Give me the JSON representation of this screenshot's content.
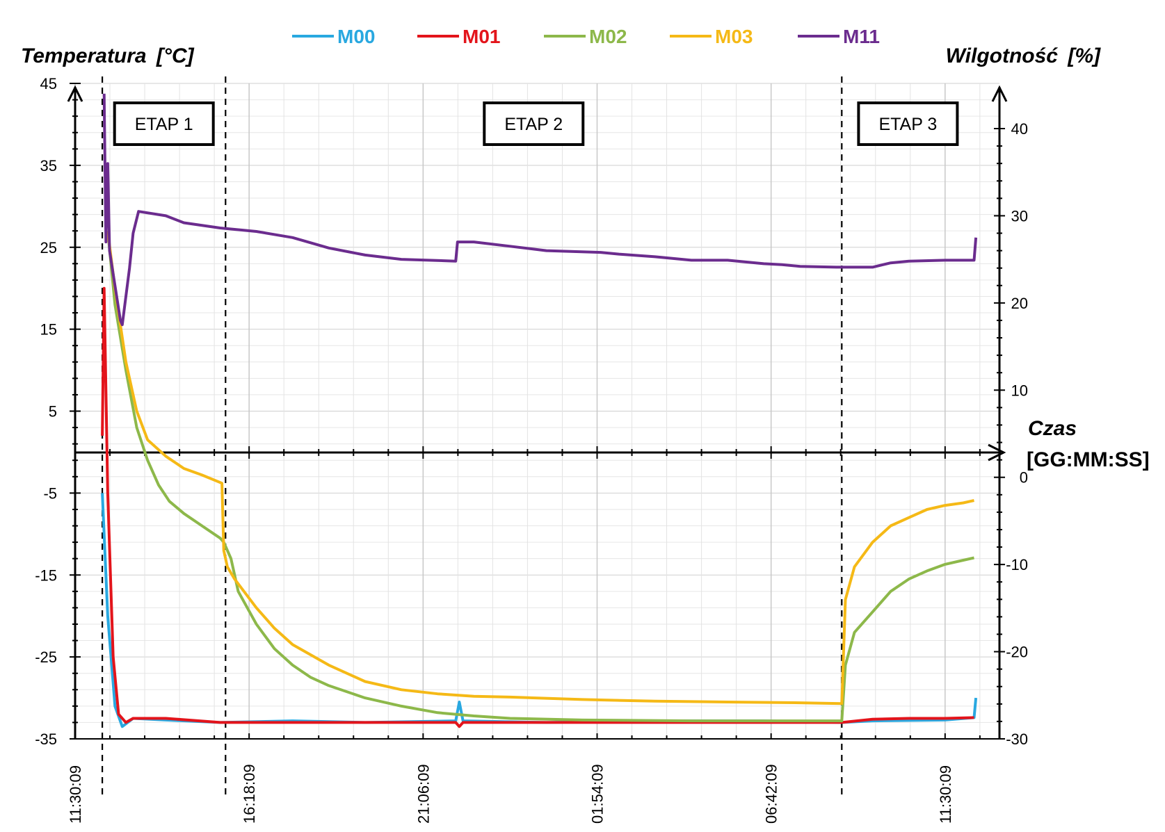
{
  "chart_data": {
    "type": "line",
    "y_axis_left": {
      "title": "Temperatura",
      "unit": "[°C]",
      "range": [
        -35,
        45
      ],
      "ticks": [
        45,
        35,
        25,
        15,
        5,
        -5,
        -15,
        -25,
        -35
      ]
    },
    "y_axis_right": {
      "title": "Wilgotność",
      "unit": "[%]",
      "range": [
        -30,
        40
      ],
      "ticks": [
        40,
        30,
        20,
        10,
        0,
        -10,
        -20,
        -30
      ]
    },
    "x_axis": {
      "title": "Czas",
      "unit": "[GG:MM:SS]",
      "unit_hours": "hours since 11:30:09",
      "range": [
        0,
        25.5
      ],
      "tick_labels": [
        {
          "label": "11:30:09",
          "value": 0
        },
        {
          "label": "16:18:09",
          "value": 4.8
        },
        {
          "label": "21:06:09",
          "value": 9.6
        },
        {
          "label": "01:54:09",
          "value": 14.4
        },
        {
          "label": "06:42:09",
          "value": 19.2
        },
        {
          "label": "11:30:09",
          "value": 24.0
        }
      ]
    },
    "grid": true,
    "legend_position": "top",
    "stages": [
      {
        "label": "ETAP 1",
        "start": 0.75,
        "end": 4.15
      },
      {
        "label": "ETAP 2",
        "start": 4.15,
        "end": 21.15
      },
      {
        "label": "ETAP 3",
        "start": 21.15,
        "end": 24.8
      }
    ],
    "series": [
      {
        "name": "M00",
        "color": "#29a8e0",
        "axis": "left",
        "points": [
          [
            0.75,
            -5
          ],
          [
            0.9,
            -20
          ],
          [
            1.1,
            -31
          ],
          [
            1.3,
            -33.5
          ],
          [
            1.6,
            -32.5
          ],
          [
            2.5,
            -32.7
          ],
          [
            4,
            -33
          ],
          [
            6,
            -32.8
          ],
          [
            8,
            -33
          ],
          [
            10.5,
            -32.8
          ],
          [
            10.6,
            -30.5
          ],
          [
            10.7,
            -32.8
          ],
          [
            13,
            -33
          ],
          [
            16,
            -32.8
          ],
          [
            19,
            -32.8
          ],
          [
            21.15,
            -33
          ],
          [
            22,
            -32.8
          ],
          [
            24,
            -32.7
          ],
          [
            24.8,
            -32.4
          ],
          [
            24.85,
            -30
          ]
        ]
      },
      {
        "name": "M01",
        "color": "#e3141b",
        "axis": "left",
        "points": [
          [
            0.75,
            2
          ],
          [
            0.8,
            20
          ],
          [
            0.9,
            -5
          ],
          [
            1.05,
            -25
          ],
          [
            1.2,
            -32
          ],
          [
            1.4,
            -33
          ],
          [
            1.6,
            -32.5
          ],
          [
            2.5,
            -32.5
          ],
          [
            4,
            -33
          ],
          [
            6,
            -33
          ],
          [
            8,
            -33
          ],
          [
            10.5,
            -33
          ],
          [
            10.6,
            -33.5
          ],
          [
            10.7,
            -33
          ],
          [
            13,
            -33
          ],
          [
            16,
            -33
          ],
          [
            19,
            -33
          ],
          [
            21.15,
            -33
          ],
          [
            22,
            -32.6
          ],
          [
            23,
            -32.5
          ],
          [
            24,
            -32.5
          ],
          [
            24.8,
            -32.4
          ]
        ]
      },
      {
        "name": "M02",
        "color": "#8db84a",
        "axis": "left",
        "points": [
          [
            0.9,
            27
          ],
          [
            1.1,
            18
          ],
          [
            1.4,
            10
          ],
          [
            1.7,
            3
          ],
          [
            2,
            -1
          ],
          [
            2.3,
            -4
          ],
          [
            2.6,
            -6
          ],
          [
            3,
            -7.5
          ],
          [
            3.5,
            -9
          ],
          [
            4,
            -10.5
          ],
          [
            4.1,
            -11
          ],
          [
            4.3,
            -13
          ],
          [
            4.5,
            -17
          ],
          [
            5,
            -21
          ],
          [
            5.5,
            -24
          ],
          [
            6,
            -26
          ],
          [
            6.5,
            -27.5
          ],
          [
            7,
            -28.5
          ],
          [
            8,
            -30
          ],
          [
            9,
            -31
          ],
          [
            10,
            -31.8
          ],
          [
            11,
            -32.2
          ],
          [
            12,
            -32.5
          ],
          [
            14,
            -32.7
          ],
          [
            17,
            -32.8
          ],
          [
            20,
            -32.8
          ],
          [
            21.15,
            -32.8
          ],
          [
            21.25,
            -26
          ],
          [
            21.5,
            -22
          ],
          [
            22,
            -19.5
          ],
          [
            22.5,
            -17
          ],
          [
            23,
            -15.5
          ],
          [
            23.5,
            -14.5
          ],
          [
            24,
            -13.7
          ],
          [
            24.5,
            -13.2
          ],
          [
            24.8,
            -12.9
          ]
        ]
      },
      {
        "name": "M03",
        "color": "#f5b916",
        "axis": "left",
        "points": [
          [
            0.9,
            27
          ],
          [
            1.1,
            20
          ],
          [
            1.4,
            11
          ],
          [
            1.7,
            5
          ],
          [
            2,
            1.5
          ],
          [
            2.5,
            -0.5
          ],
          [
            3,
            -2
          ],
          [
            3.5,
            -2.8
          ],
          [
            4.05,
            -3.8
          ],
          [
            4.1,
            -12
          ],
          [
            4.2,
            -14
          ],
          [
            4.4,
            -15.5
          ],
          [
            5,
            -19
          ],
          [
            5.5,
            -21.5
          ],
          [
            6,
            -23.5
          ],
          [
            7,
            -26
          ],
          [
            8,
            -28
          ],
          [
            9,
            -29
          ],
          [
            10,
            -29.5
          ],
          [
            11,
            -29.8
          ],
          [
            12,
            -29.9
          ],
          [
            14,
            -30.2
          ],
          [
            16,
            -30.4
          ],
          [
            18,
            -30.5
          ],
          [
            20,
            -30.6
          ],
          [
            21.15,
            -30.7
          ],
          [
            21.25,
            -18
          ],
          [
            21.5,
            -14
          ],
          [
            22,
            -11
          ],
          [
            22.5,
            -9
          ],
          [
            23,
            -8
          ],
          [
            23.5,
            -7
          ],
          [
            24,
            -6.5
          ],
          [
            24.5,
            -6.2
          ],
          [
            24.8,
            -5.9
          ]
        ]
      },
      {
        "name": "M11",
        "color": "#6b2c8e",
        "axis": "right",
        "points": [
          [
            0.8,
            44
          ],
          [
            0.85,
            27
          ],
          [
            0.9,
            36
          ],
          [
            0.95,
            26
          ],
          [
            1.1,
            22
          ],
          [
            1.25,
            18
          ],
          [
            1.3,
            17.5
          ],
          [
            1.5,
            24
          ],
          [
            1.6,
            28
          ],
          [
            1.75,
            30.5
          ],
          [
            2.5,
            30
          ],
          [
            3,
            29.2
          ],
          [
            4,
            28.6
          ],
          [
            5,
            28.2
          ],
          [
            6,
            27.5
          ],
          [
            7,
            26.3
          ],
          [
            8,
            25.5
          ],
          [
            9,
            25
          ],
          [
            10.5,
            24.8
          ],
          [
            10.55,
            27
          ],
          [
            11,
            27
          ],
          [
            12,
            26.5
          ],
          [
            13,
            26
          ],
          [
            14.5,
            25.8
          ],
          [
            15,
            25.6
          ],
          [
            16,
            25.3
          ],
          [
            17,
            24.9
          ],
          [
            18,
            24.9
          ],
          [
            19,
            24.5
          ],
          [
            19.5,
            24.4
          ],
          [
            20,
            24.2
          ],
          [
            21,
            24.1
          ],
          [
            22,
            24.1
          ],
          [
            22.5,
            24.6
          ],
          [
            23,
            24.8
          ],
          [
            24,
            24.9
          ],
          [
            24.8,
            24.9
          ],
          [
            24.85,
            27.5
          ]
        ]
      }
    ]
  }
}
